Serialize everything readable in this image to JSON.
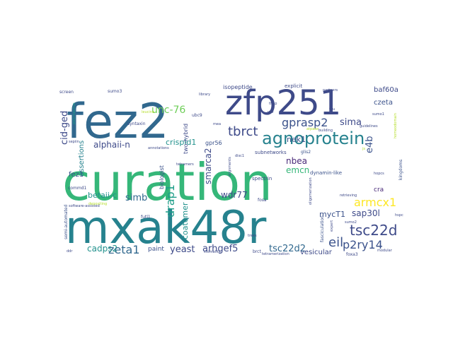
{
  "wordcloud": {
    "words": [
      {
        "text": "curation",
        "color": "#35b779"
      },
      {
        "text": "mxak48r",
        "color": "#26828e"
      },
      {
        "text": "fez2",
        "color": "#31688e"
      },
      {
        "text": "zfp251",
        "color": "#3e4a89"
      },
      {
        "text": "agnoprotein",
        "color": "#26828e"
      },
      {
        "text": "tbrct",
        "color": "#3e4a89"
      },
      {
        "text": "tsc22d",
        "color": "#3e4a89"
      },
      {
        "text": "gprasp2",
        "color": "#3b528b"
      },
      {
        "text": "eil",
        "color": "#3b528b"
      },
      {
        "text": "p2ry14",
        "color": "#3b528b"
      },
      {
        "text": "armcx1",
        "color": "#fde725"
      },
      {
        "text": "zeta1",
        "color": "#31688e"
      },
      {
        "text": "unc-76",
        "color": "#6ece58"
      },
      {
        "text": "simb",
        "color": "#31688e"
      },
      {
        "text": "drap1",
        "color": "#1f9e89"
      },
      {
        "text": "sima",
        "color": "#3e4a89"
      },
      {
        "text": "e4b",
        "color": "#3b528b"
      },
      {
        "text": "yeast",
        "color": "#3e4a89"
      },
      {
        "text": "arhgef5",
        "color": "#3e4a89"
      },
      {
        "text": "tsc22d2",
        "color": "#31688e"
      },
      {
        "text": "alphaii-n",
        "color": "#3e4a89"
      },
      {
        "text": "cid-ged",
        "color": "#3e4a89"
      },
      {
        "text": "emcn",
        "color": "#35b779"
      },
      {
        "text": "nbea",
        "color": "#482878"
      },
      {
        "text": "wdr77",
        "color": "#3e4a89"
      },
      {
        "text": "sap30l",
        "color": "#3e4a89"
      },
      {
        "text": "smarca2",
        "color": "#3e4a89"
      },
      {
        "text": "cadps2",
        "color": "#21918c"
      },
      {
        "text": "betaii-c",
        "color": "#21918c"
      },
      {
        "text": "mycT1",
        "color": "#3b528b"
      },
      {
        "text": "nek1",
        "color": "#3b528b"
      },
      {
        "text": "crispld1",
        "color": "#21918c"
      },
      {
        "text": "baf60a",
        "color": "#3e4a89"
      },
      {
        "text": "czeta",
        "color": "#3b528b"
      },
      {
        "text": "coatomer",
        "color": "#21918c"
      },
      {
        "text": "vesicular",
        "color": "#3e4a89"
      },
      {
        "text": "assertions",
        "color": "#26828e"
      },
      {
        "text": "fez1",
        "color": "#3b528b"
      },
      {
        "text": "cra",
        "color": "#482878"
      },
      {
        "text": "two-hybrid",
        "color": "#3e4a89"
      },
      {
        "text": "biologist",
        "color": "#3b528b"
      },
      {
        "text": "gpr56",
        "color": "#3b528b"
      },
      {
        "text": "paint",
        "color": "#3b528b"
      },
      {
        "text": "isopeptide",
        "color": "#3e4a89"
      },
      {
        "text": "explicit",
        "color": "#3e4a89"
      },
      {
        "text": "subnetworks",
        "color": "#3e4a89"
      },
      {
        "text": "spectrin",
        "color": "#3e4a89"
      },
      {
        "text": "kingdoms",
        "color": "#3b528b"
      },
      {
        "text": "fasciculation",
        "color": "#3b528b"
      },
      {
        "text": "dynamin-like",
        "color": "#3b528b"
      },
      {
        "text": "glis2",
        "color": "#3b528b"
      },
      {
        "text": "fosa",
        "color": "#3e4a89"
      },
      {
        "text": "futl1",
        "color": "#3e4a89"
      },
      {
        "text": "brct",
        "color": "#3e4a89"
      },
      {
        "text": "foxa3",
        "color": "#3e4a89"
      },
      {
        "text": "syntaxin",
        "color": "#3e4a89"
      },
      {
        "text": "sumo3",
        "color": "#3e4a89"
      },
      {
        "text": "ubc9",
        "color": "#3e4a89"
      },
      {
        "text": "annotations",
        "color": "#3e4a89"
      },
      {
        "text": "tetramers",
        "color": "#3e4a89"
      },
      {
        "text": "polymavirus",
        "color": "#1f9e89"
      },
      {
        "text": "commd1",
        "color": "#3e4a89"
      },
      {
        "text": "library",
        "color": "#3e4a89"
      },
      {
        "text": "partners",
        "color": "#3e4a89"
      },
      {
        "text": "screen",
        "color": "#3e4a89"
      },
      {
        "text": "retrieving",
        "color": "#3e4a89"
      },
      {
        "text": "semi-automated",
        "color": "#3b528b"
      },
      {
        "text": "software-assisted",
        "color": "#3e4a89"
      },
      {
        "text": "stomatitic",
        "color": "#3e4a89"
      },
      {
        "text": "tetramerization",
        "color": "#3e4a89"
      },
      {
        "text": "modular",
        "color": "#3e4a89"
      },
      {
        "text": "disc1",
        "color": "#3e4a89"
      },
      {
        "text": "vsv",
        "color": "#3e4a89"
      },
      {
        "text": "thap",
        "color": "#3e4a89"
      },
      {
        "text": "mea",
        "color": "#3e4a89"
      },
      {
        "text": "building",
        "color": "#3e4a89"
      },
      {
        "text": "guidelines",
        "color": "#3e4a89"
      },
      {
        "text": "expert",
        "color": "#3e4a89"
      },
      {
        "text": "sumo2",
        "color": "#3e4a89"
      },
      {
        "text": "hspc",
        "color": "#3e4a89"
      },
      {
        "text": "hopcs",
        "color": "#3e4a89"
      },
      {
        "text": "sumo1",
        "color": "#3e4a89"
      },
      {
        "text": "trees",
        "color": "#3e4a89"
      },
      {
        "text": "alignments",
        "color": "#3e4a89"
      },
      {
        "text": "oligomerization",
        "color": "#3e4a89"
      },
      {
        "text": "sepiin",
        "color": "#3e4a89"
      },
      {
        "text": "ddr",
        "color": "#3e4a89"
      },
      {
        "text": "leucine",
        "color": "#b5de2b"
      },
      {
        "text": "depositing",
        "color": "#b5de2b"
      },
      {
        "text": "homeodomain",
        "color": "#b5de2b"
      },
      {
        "text": "js",
        "color": "#b5de2b"
      },
      {
        "text": "atpase",
        "color": "#b5de2b"
      },
      {
        "text": "tau",
        "color": "#3e4a89"
      }
    ]
  }
}
